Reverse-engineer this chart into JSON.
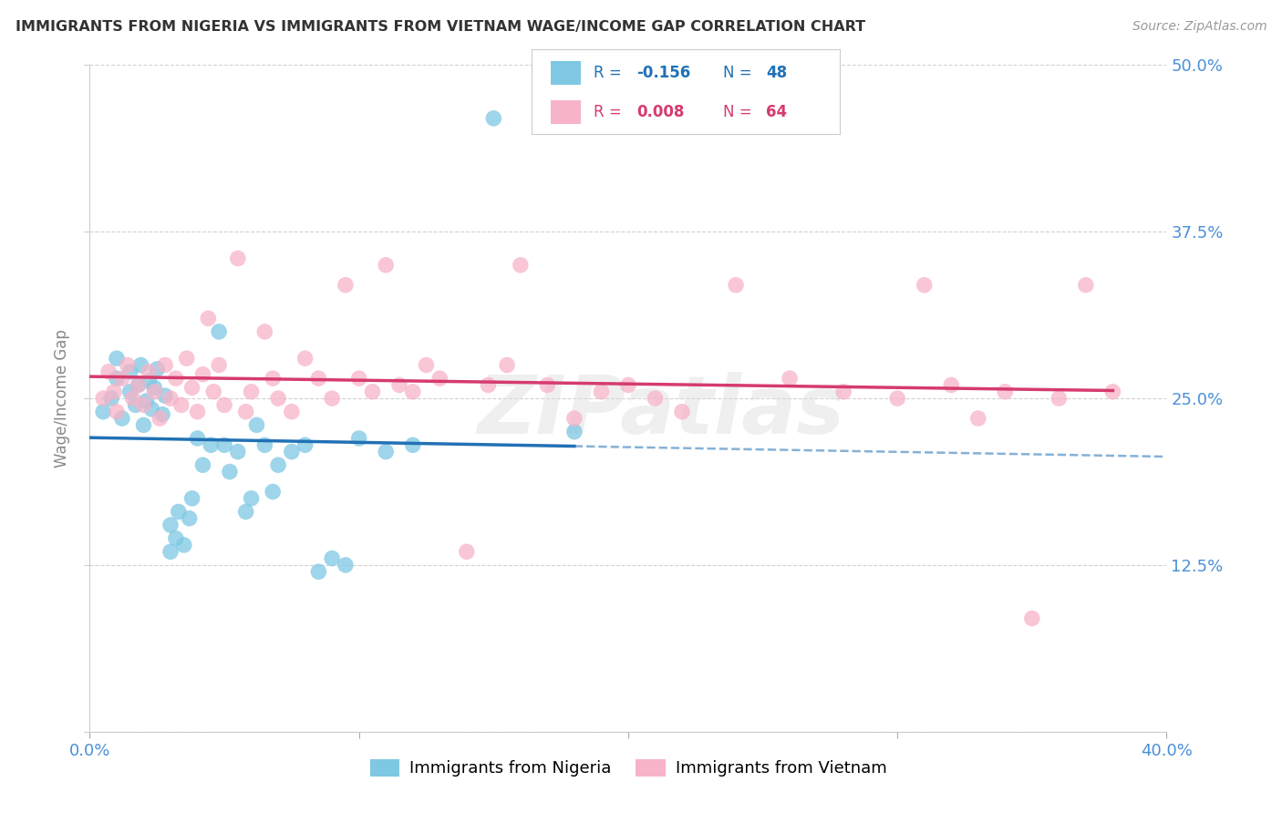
{
  "title": "IMMIGRANTS FROM NIGERIA VS IMMIGRANTS FROM VIETNAM WAGE/INCOME GAP CORRELATION CHART",
  "source": "Source: ZipAtlas.com",
  "ylabel": "Wage/Income Gap",
  "xlim": [
    0.0,
    0.4
  ],
  "ylim": [
    0.0,
    0.5
  ],
  "yticks": [
    0.0,
    0.125,
    0.25,
    0.375,
    0.5
  ],
  "ytick_labels": [
    "",
    "12.5%",
    "25.0%",
    "37.5%",
    "50.0%"
  ],
  "xticks": [
    0.0,
    0.1,
    0.2,
    0.3,
    0.4
  ],
  "xtick_labels": [
    "0.0%",
    "",
    "",
    "",
    "40.0%"
  ],
  "nigeria_R": -0.156,
  "nigeria_N": 48,
  "vietnam_R": 0.008,
  "vietnam_N": 64,
  "nigeria_color": "#7ec8e3",
  "vietnam_color": "#f7b3c8",
  "nigeria_line_color": "#2171b5",
  "vietnam_line_color": "#d63b6e",
  "tick_label_color": "#4a90d9",
  "watermark": "ZIPatlas",
  "nigeria_x": [
    0.005,
    0.008,
    0.01,
    0.01,
    0.012,
    0.015,
    0.015,
    0.017,
    0.018,
    0.019,
    0.02,
    0.021,
    0.022,
    0.023,
    0.024,
    0.025,
    0.027,
    0.028,
    0.03,
    0.03,
    0.032,
    0.033,
    0.035,
    0.037,
    0.038,
    0.04,
    0.042,
    0.045,
    0.048,
    0.05,
    0.052,
    0.055,
    0.058,
    0.06,
    0.062,
    0.065,
    0.068,
    0.07,
    0.075,
    0.08,
    0.085,
    0.09,
    0.095,
    0.1,
    0.11,
    0.12,
    0.15,
    0.18
  ],
  "nigeria_y": [
    0.24,
    0.25,
    0.265,
    0.28,
    0.235,
    0.255,
    0.27,
    0.245,
    0.26,
    0.275,
    0.23,
    0.248,
    0.263,
    0.242,
    0.258,
    0.272,
    0.238,
    0.252,
    0.135,
    0.155,
    0.145,
    0.165,
    0.14,
    0.16,
    0.175,
    0.22,
    0.2,
    0.215,
    0.3,
    0.215,
    0.195,
    0.21,
    0.165,
    0.175,
    0.23,
    0.215,
    0.18,
    0.2,
    0.21,
    0.215,
    0.12,
    0.13,
    0.125,
    0.22,
    0.21,
    0.215,
    0.46,
    0.225
  ],
  "vietnam_x": [
    0.005,
    0.007,
    0.009,
    0.01,
    0.012,
    0.014,
    0.016,
    0.018,
    0.02,
    0.022,
    0.024,
    0.026,
    0.028,
    0.03,
    0.032,
    0.034,
    0.036,
    0.038,
    0.04,
    0.042,
    0.044,
    0.046,
    0.048,
    0.05,
    0.055,
    0.058,
    0.06,
    0.065,
    0.068,
    0.07,
    0.075,
    0.08,
    0.085,
    0.09,
    0.095,
    0.1,
    0.105,
    0.11,
    0.115,
    0.12,
    0.125,
    0.13,
    0.14,
    0.148,
    0.155,
    0.16,
    0.17,
    0.18,
    0.19,
    0.2,
    0.21,
    0.22,
    0.24,
    0.26,
    0.28,
    0.3,
    0.31,
    0.32,
    0.33,
    0.34,
    0.35,
    0.36,
    0.37,
    0.38
  ],
  "vietnam_y": [
    0.25,
    0.27,
    0.255,
    0.24,
    0.265,
    0.275,
    0.25,
    0.26,
    0.245,
    0.27,
    0.255,
    0.235,
    0.275,
    0.25,
    0.265,
    0.245,
    0.28,
    0.258,
    0.24,
    0.268,
    0.31,
    0.255,
    0.275,
    0.245,
    0.355,
    0.24,
    0.255,
    0.3,
    0.265,
    0.25,
    0.24,
    0.28,
    0.265,
    0.25,
    0.335,
    0.265,
    0.255,
    0.35,
    0.26,
    0.255,
    0.275,
    0.265,
    0.135,
    0.26,
    0.275,
    0.35,
    0.26,
    0.235,
    0.255,
    0.26,
    0.25,
    0.24,
    0.335,
    0.265,
    0.255,
    0.25,
    0.335,
    0.26,
    0.235,
    0.255,
    0.085,
    0.25,
    0.335,
    0.255
  ]
}
